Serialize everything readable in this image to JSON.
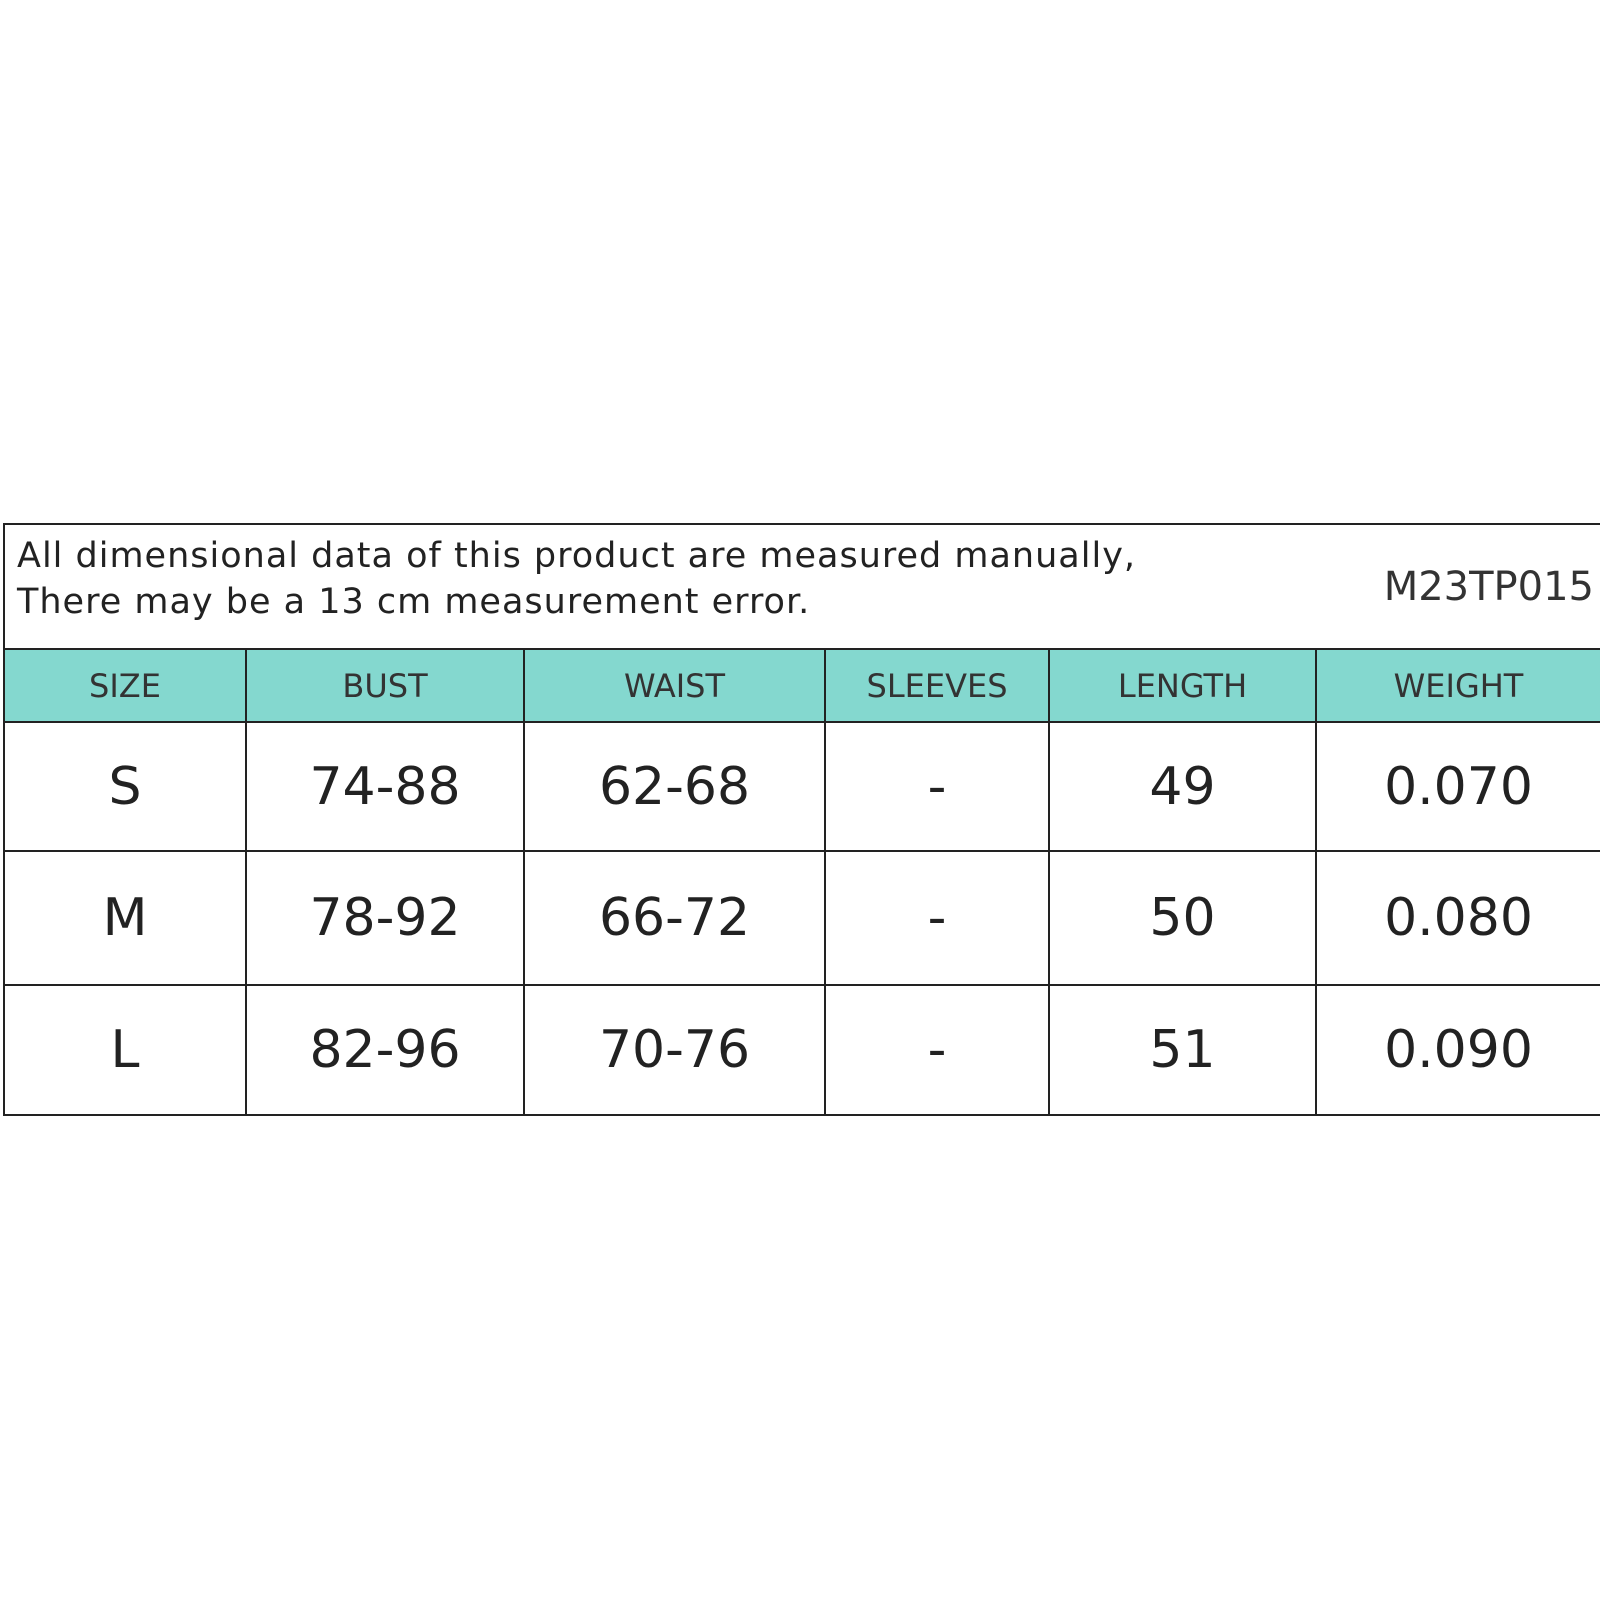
{
  "note": {
    "lines": [
      "All dimensional data of this product are measured manually,",
      "There may be a 13 cm measurement error."
    ],
    "code": "M23TP015"
  },
  "table": {
    "headers": [
      "SIZE",
      "BUST",
      "WAIST",
      "SLEEVES",
      "LENGTH",
      "WEIGHT"
    ],
    "rows": [
      [
        "S",
        "74-88",
        "62-68",
        "-",
        "49",
        "0.070"
      ],
      [
        "M",
        "78-92",
        "66-72",
        "-",
        "50",
        "0.080"
      ],
      [
        "L",
        "82-96",
        "70-76",
        "-",
        "51",
        "0.090"
      ]
    ]
  }
}
